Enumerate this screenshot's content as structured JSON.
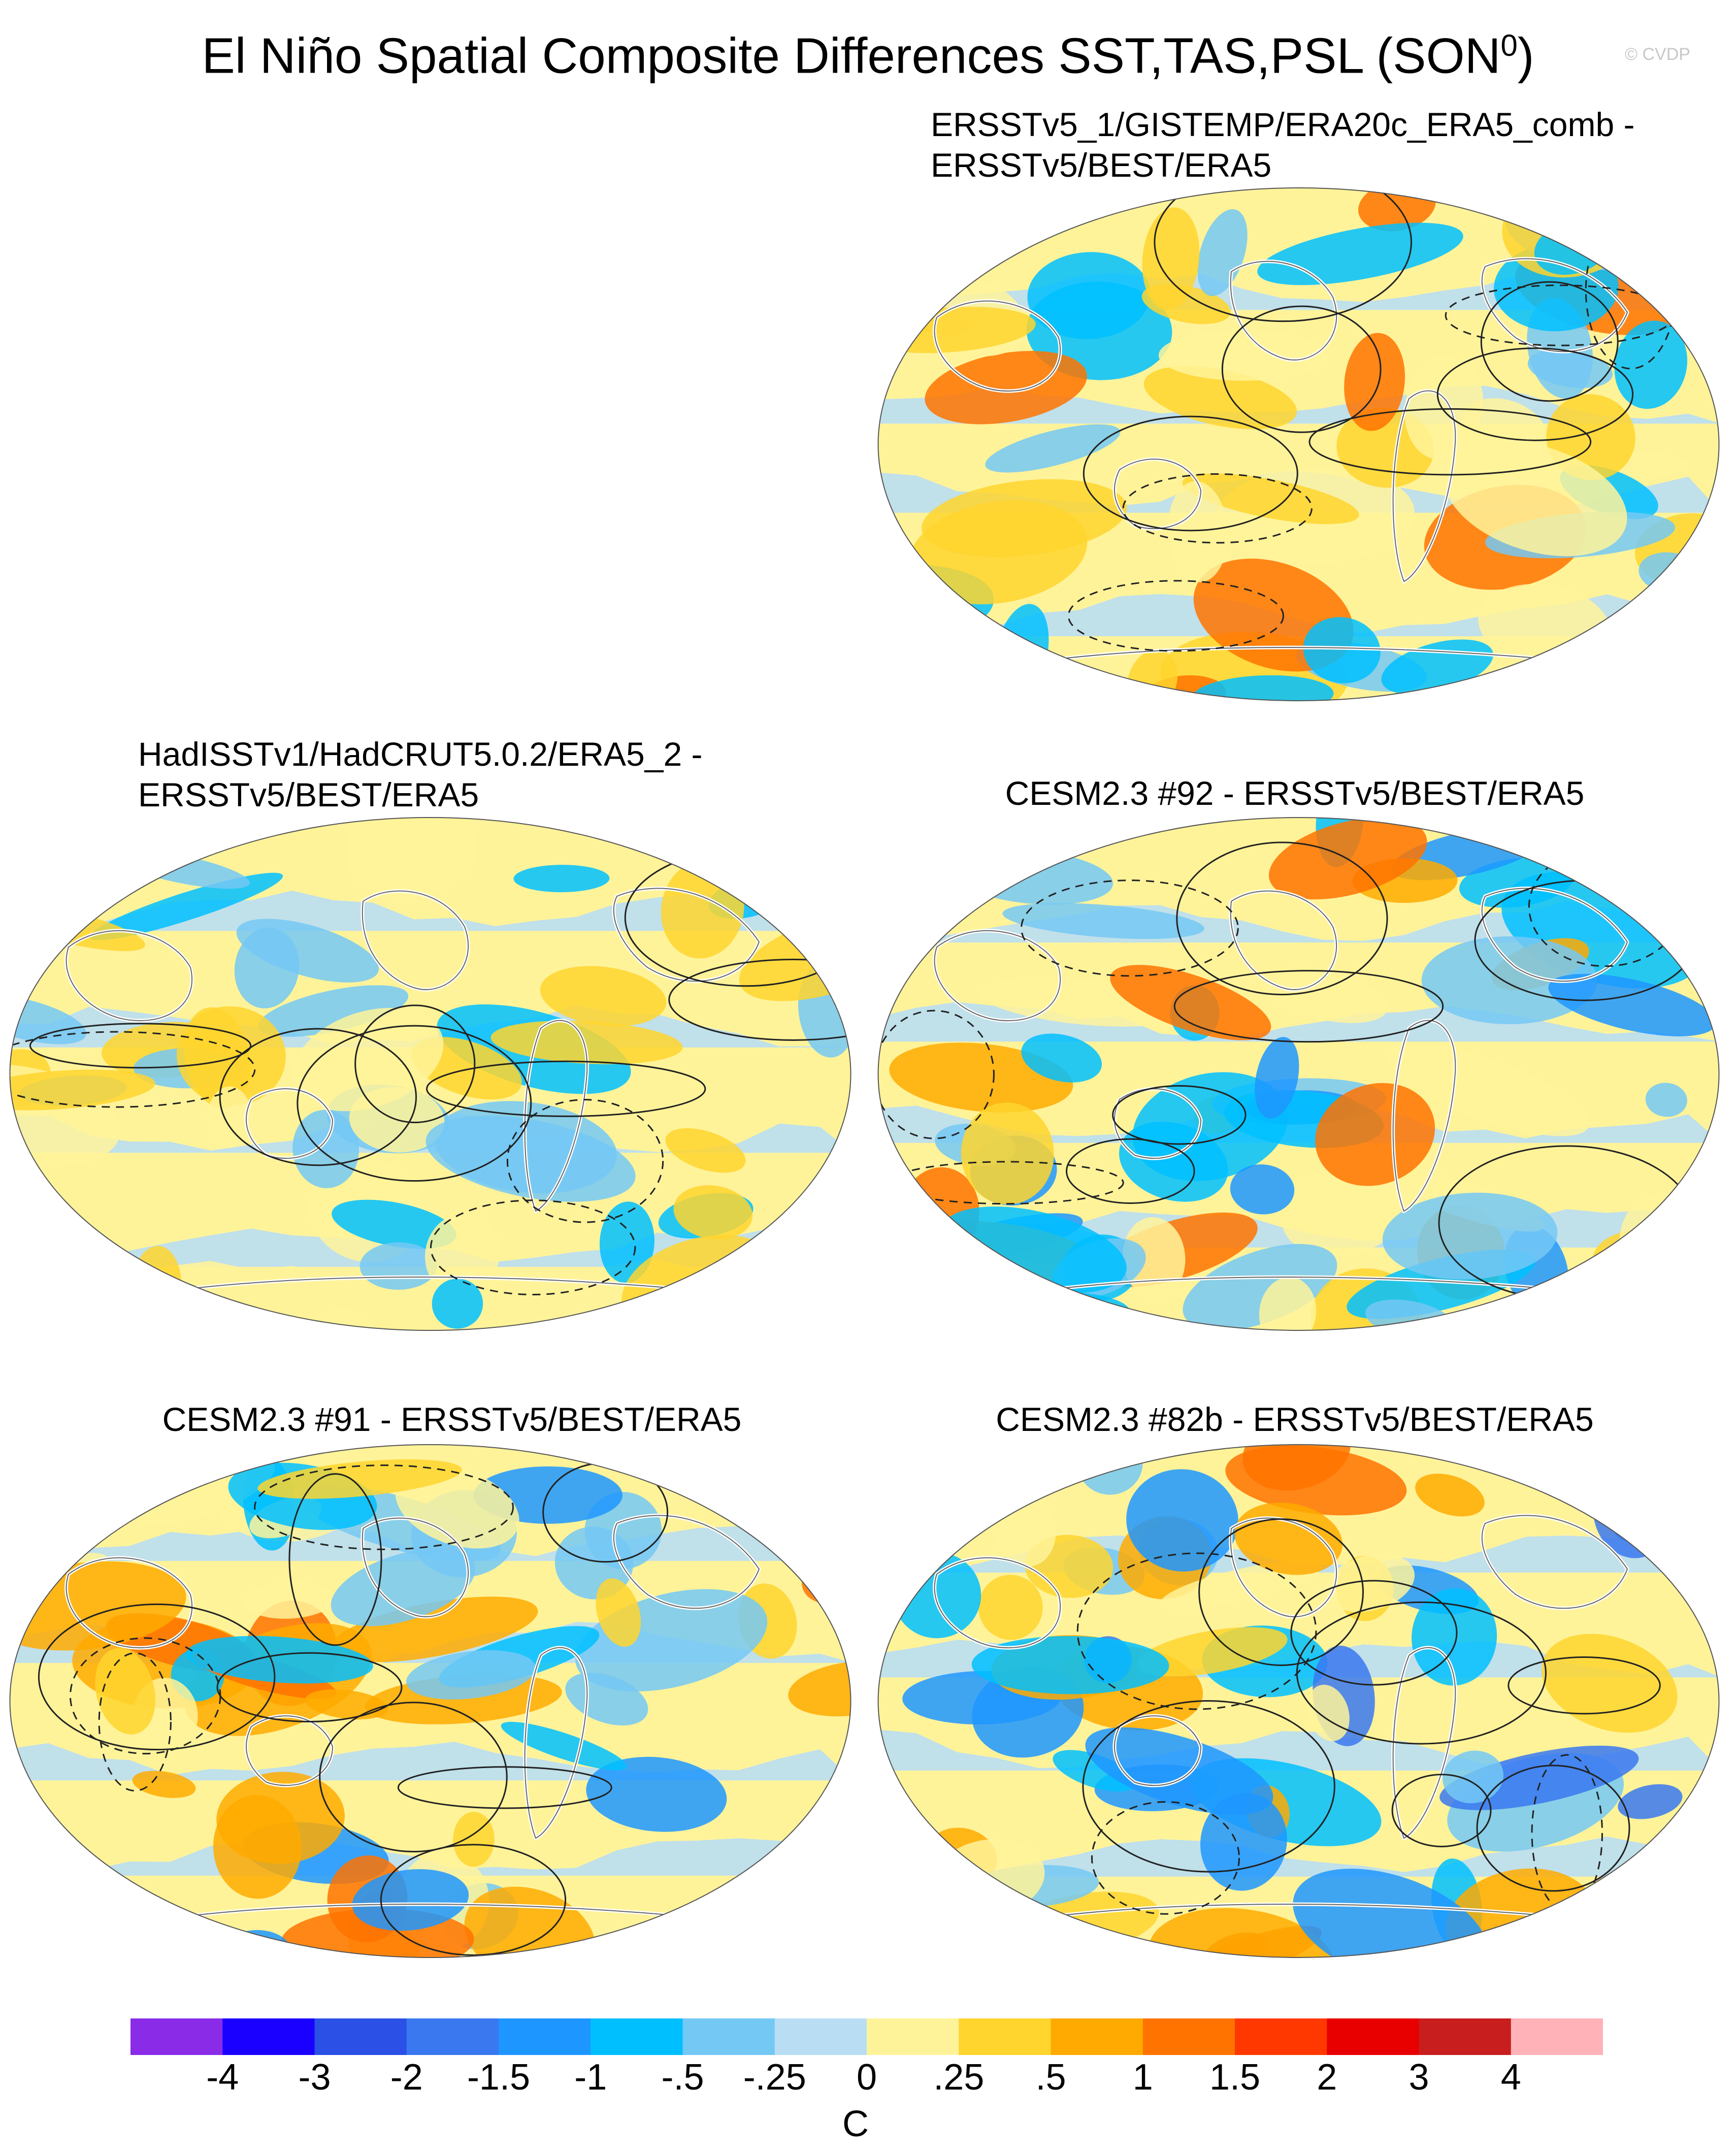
{
  "title": "El Niño Spatial Composite Differences SST,TAS,PSL (SON",
  "title_sup": "0",
  "title_end": ")",
  "watermark": "© CVDP",
  "panels": [
    {
      "line1": "ERSSTv5_1/GISTEMP/ERA20c_ERA5_comb -",
      "line2": "ERSSTv5/BEST/ERA5"
    },
    {
      "line1": "HadISSTv1/HadCRUT5.0.2/ERA5_2 -",
      "line2": "ERSSTv5/BEST/ERA5"
    },
    {
      "line1": "CESM2.3 #92 - ERSSTv5/BEST/ERA5",
      "line2": ""
    },
    {
      "line1": "CESM2.3 #91 - ERSSTv5/BEST/ERA5",
      "line2": ""
    },
    {
      "line1": "CESM2.3 #82b - ERSSTv5/BEST/ERA5",
      "line2": ""
    }
  ],
  "colorbar": {
    "labels": [
      "-4",
      "-3",
      "-2",
      "-1.5",
      "-1",
      "-.5",
      "-.25",
      "0",
      ".25",
      ".5",
      "1",
      "1.5",
      "2",
      "3",
      "4"
    ],
    "colors": [
      "#8a2be8",
      "#1a00ff",
      "#2a50e6",
      "#3a78f0",
      "#1e96ff",
      "#00bfff",
      "#74c8f4",
      "#b9def3",
      "#fff39a",
      "#ffd52e",
      "#ffaa00",
      "#ff7300",
      "#ff3800",
      "#e80000",
      "#c81e1e",
      "#ffb3b8"
    ],
    "units": "C"
  },
  "palette": {
    "ocean_light_blue": "#b9def3",
    "light_yellow": "#fff39a",
    "coast_line": "#ffffff",
    "contour": "#222222"
  }
}
